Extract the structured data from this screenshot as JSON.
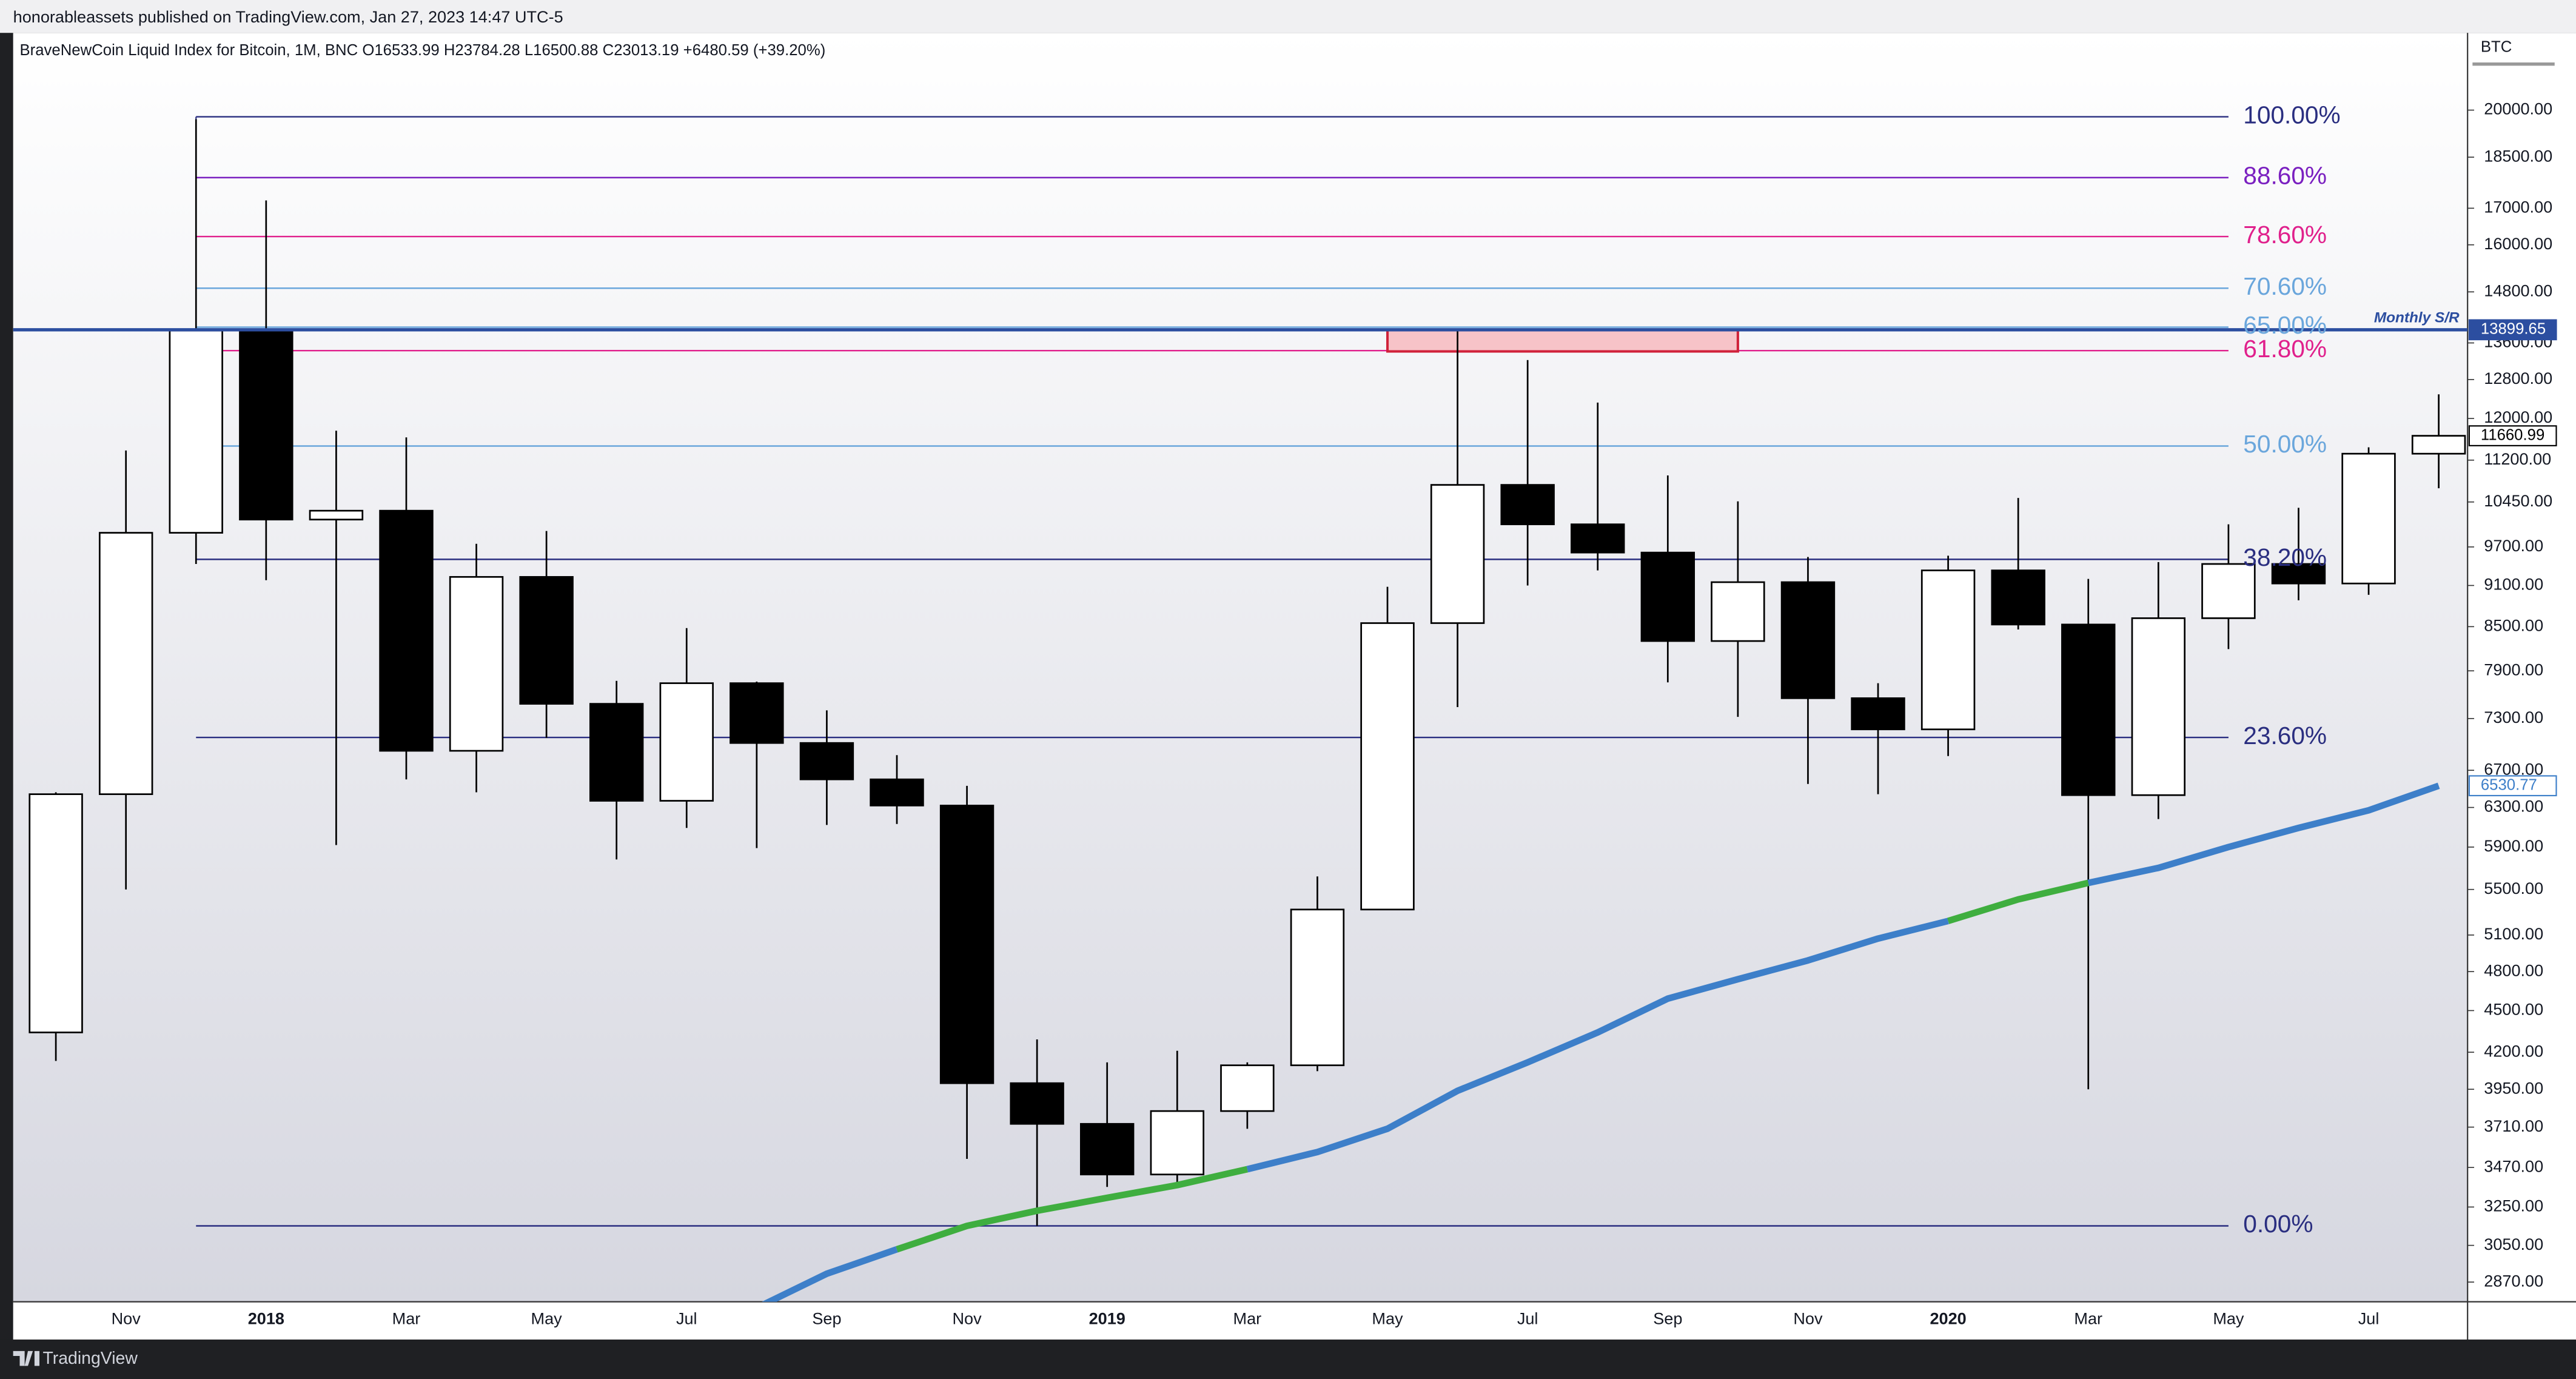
{
  "page": {
    "published": "honorableassets published on TradingView.com, Jan 27, 2023 14:47 UTC-5",
    "brand": "TradingView"
  },
  "chart_data": {
    "type": "candlestick",
    "title": "BraveNewCoin Liquid Index for Bitcoin, 1M, BNC  O16533.99  H23784.28  L16500.88  C23013.19  +6480.59 (+39.20%)",
    "symbol": "BTC",
    "categories": [
      null,
      "Nov",
      null,
      "2018",
      null,
      "Mar",
      null,
      "May",
      null,
      "Jul",
      null,
      "Sep",
      null,
      "Nov",
      null,
      "2019",
      null,
      "Mar",
      null,
      "May",
      null,
      "Jul",
      null,
      "Sep",
      null,
      "Nov",
      null,
      "2020",
      null,
      "Mar",
      null,
      "May",
      null,
      "Jul",
      null
    ],
    "open": [
      4340,
      6440,
      9930,
      13880,
      10150,
      10300,
      6920,
      9230,
      7480,
      6370,
      7740,
      7010,
      6600,
      6320,
      3990,
      3730,
      3430,
      3810,
      4110,
      5320,
      8550,
      10750,
      10070,
      9610,
      8300,
      9150,
      7550,
      7170,
      9330,
      8530,
      6430,
      8620,
      9430,
      9130,
      11320
    ],
    "high": [
      6460,
      11380,
      19700,
      17220,
      11760,
      11630,
      9750,
      9960,
      7770,
      8480,
      7760,
      7400,
      6870,
      6530,
      4290,
      4130,
      4210,
      4130,
      5620,
      9080,
      13880,
      13220,
      12320,
      10920,
      10460,
      9540,
      7740,
      9560,
      10520,
      9200,
      9460,
      10070,
      10350,
      11440,
      12490
    ],
    "low": [
      4140,
      5500,
      9430,
      9180,
      5920,
      6600,
      6460,
      7070,
      5780,
      6090,
      5890,
      6120,
      6130,
      3520,
      3150,
      3360,
      3360,
      3700,
      4070,
      5320,
      7440,
      9100,
      9330,
      7750,
      7320,
      6550,
      6440,
      6860,
      8460,
      3950,
      6180,
      8190,
      8880,
      8960,
      10690
    ],
    "close": [
      6440,
      9930,
      13880,
      10150,
      10300,
      6920,
      9230,
      7480,
      6370,
      7740,
      7010,
      6600,
      6320,
      3990,
      3730,
      3430,
      3810,
      4110,
      5320,
      8550,
      10750,
      10070,
      9610,
      8300,
      9150,
      7550,
      7170,
      9330,
      8530,
      6430,
      8620,
      9430,
      9130,
      11320,
      11660.99
    ],
    "up_color": "#ffffff",
    "down_color": "#000000",
    "wick_color": "#000000",
    "log_scale": true,
    "ylim": [
      2778,
      22730
    ],
    "yticks": [
      {
        "value": 20000,
        "label": "20000.00"
      },
      {
        "value": 18500,
        "label": "18500.00"
      },
      {
        "value": 17000,
        "label": "17000.00"
      },
      {
        "value": 16000,
        "label": "16000.00"
      },
      {
        "value": 14800,
        "label": "14800.00"
      },
      {
        "value": 13600,
        "label": "13600.00"
      },
      {
        "value": 12800,
        "label": "12800.00"
      },
      {
        "value": 12000,
        "label": "12000.00"
      },
      {
        "value": 11200,
        "label": "11200.00"
      },
      {
        "value": 10450,
        "label": "10450.00"
      },
      {
        "value": 9700,
        "label": "9700.00"
      },
      {
        "value": 9100,
        "label": "9100.00"
      },
      {
        "value": 8500,
        "label": "8500.00"
      },
      {
        "value": 7900,
        "label": "7900.00"
      },
      {
        "value": 7300,
        "label": "7300.00"
      },
      {
        "value": 6700,
        "label": "6700.00"
      },
      {
        "value": 6300,
        "label": "6300.00"
      },
      {
        "value": 5900,
        "label": "5900.00"
      },
      {
        "value": 5500,
        "label": "5500.00"
      },
      {
        "value": 5100,
        "label": "5100.00"
      },
      {
        "value": 4800,
        "label": "4800.00"
      },
      {
        "value": 4500,
        "label": "4500.00"
      },
      {
        "value": 4200,
        "label": "4200.00"
      },
      {
        "value": 3950,
        "label": "3950.00"
      },
      {
        "value": 3710,
        "label": "3710.00"
      },
      {
        "value": 3470,
        "label": "3470.00"
      },
      {
        "value": 3250,
        "label": "3250.00"
      },
      {
        "value": 3050,
        "label": "3050.00"
      },
      {
        "value": 2870,
        "label": "2870.00"
      }
    ],
    "ma": {
      "color": "#3d7fc9",
      "values": [
        null,
        null,
        null,
        null,
        null,
        null,
        null,
        null,
        null,
        null,
        2750,
        2910,
        3030,
        3150,
        3230,
        3300,
        3370,
        3460,
        3560,
        3700,
        3940,
        4130,
        4340,
        4590,
        4740,
        4890,
        5070,
        5220,
        5410,
        5560,
        5700,
        5900,
        6090,
        6270,
        6530.77
      ],
      "colors": [
        null,
        null,
        null,
        null,
        null,
        null,
        null,
        null,
        null,
        null,
        "#3d7fc9",
        "#3d7fc9",
        "#3d7fc9",
        "#3fae3f",
        "#3fae3f",
        "#3fae3f",
        "#3fae3f",
        "#3fae3f",
        "#3d7fc9",
        "#3d7fc9",
        "#3d7fc9",
        "#3d7fc9",
        "#3d7fc9",
        "#3d7fc9",
        "#3d7fc9",
        "#3d7fc9",
        "#3d7fc9",
        "#3d7fc9",
        "#3fae3f",
        "#3fae3f",
        "#3d7fc9",
        "#3d7fc9",
        "#3d7fc9",
        "#3d7fc9",
        "#3d7fc9"
      ]
    },
    "fib": {
      "high": 19780,
      "low": 3150,
      "from_index": 2,
      "to_index": 31,
      "levels": [
        {
          "value": 0,
          "label": "0.00%",
          "color": "#2a2e80"
        },
        {
          "value": 23.6,
          "label": "23.60%",
          "color": "#2a2e80"
        },
        {
          "value": 38.2,
          "label": "38.20%",
          "color": "#2a2e80"
        },
        {
          "value": 50,
          "label": "50.00%",
          "color": "#6aa6dc"
        },
        {
          "value": 61.8,
          "label": "61.80%",
          "color": "#e0208c"
        },
        {
          "value": 65,
          "label": "65.00%",
          "color": "#6aa6dc"
        },
        {
          "value": 70.6,
          "label": "70.60%",
          "color": "#6aa6dc"
        },
        {
          "value": 78.6,
          "label": "78.60%",
          "color": "#e0208c"
        },
        {
          "value": 88.6,
          "label": "88.60%",
          "color": "#7a1fc0"
        },
        {
          "value": 100,
          "label": "100.00%",
          "color": "#2a2e80"
        }
      ]
    },
    "sr": {
      "value": 13899.65,
      "label": "Monthly S/R",
      "color": "#2c4ea0"
    },
    "zone": {
      "top": 13899.65,
      "bottom": 13410,
      "from_index": 19,
      "to_index": 24,
      "fill": "#f7c3c8",
      "stroke": "#d0223a"
    }
  }
}
